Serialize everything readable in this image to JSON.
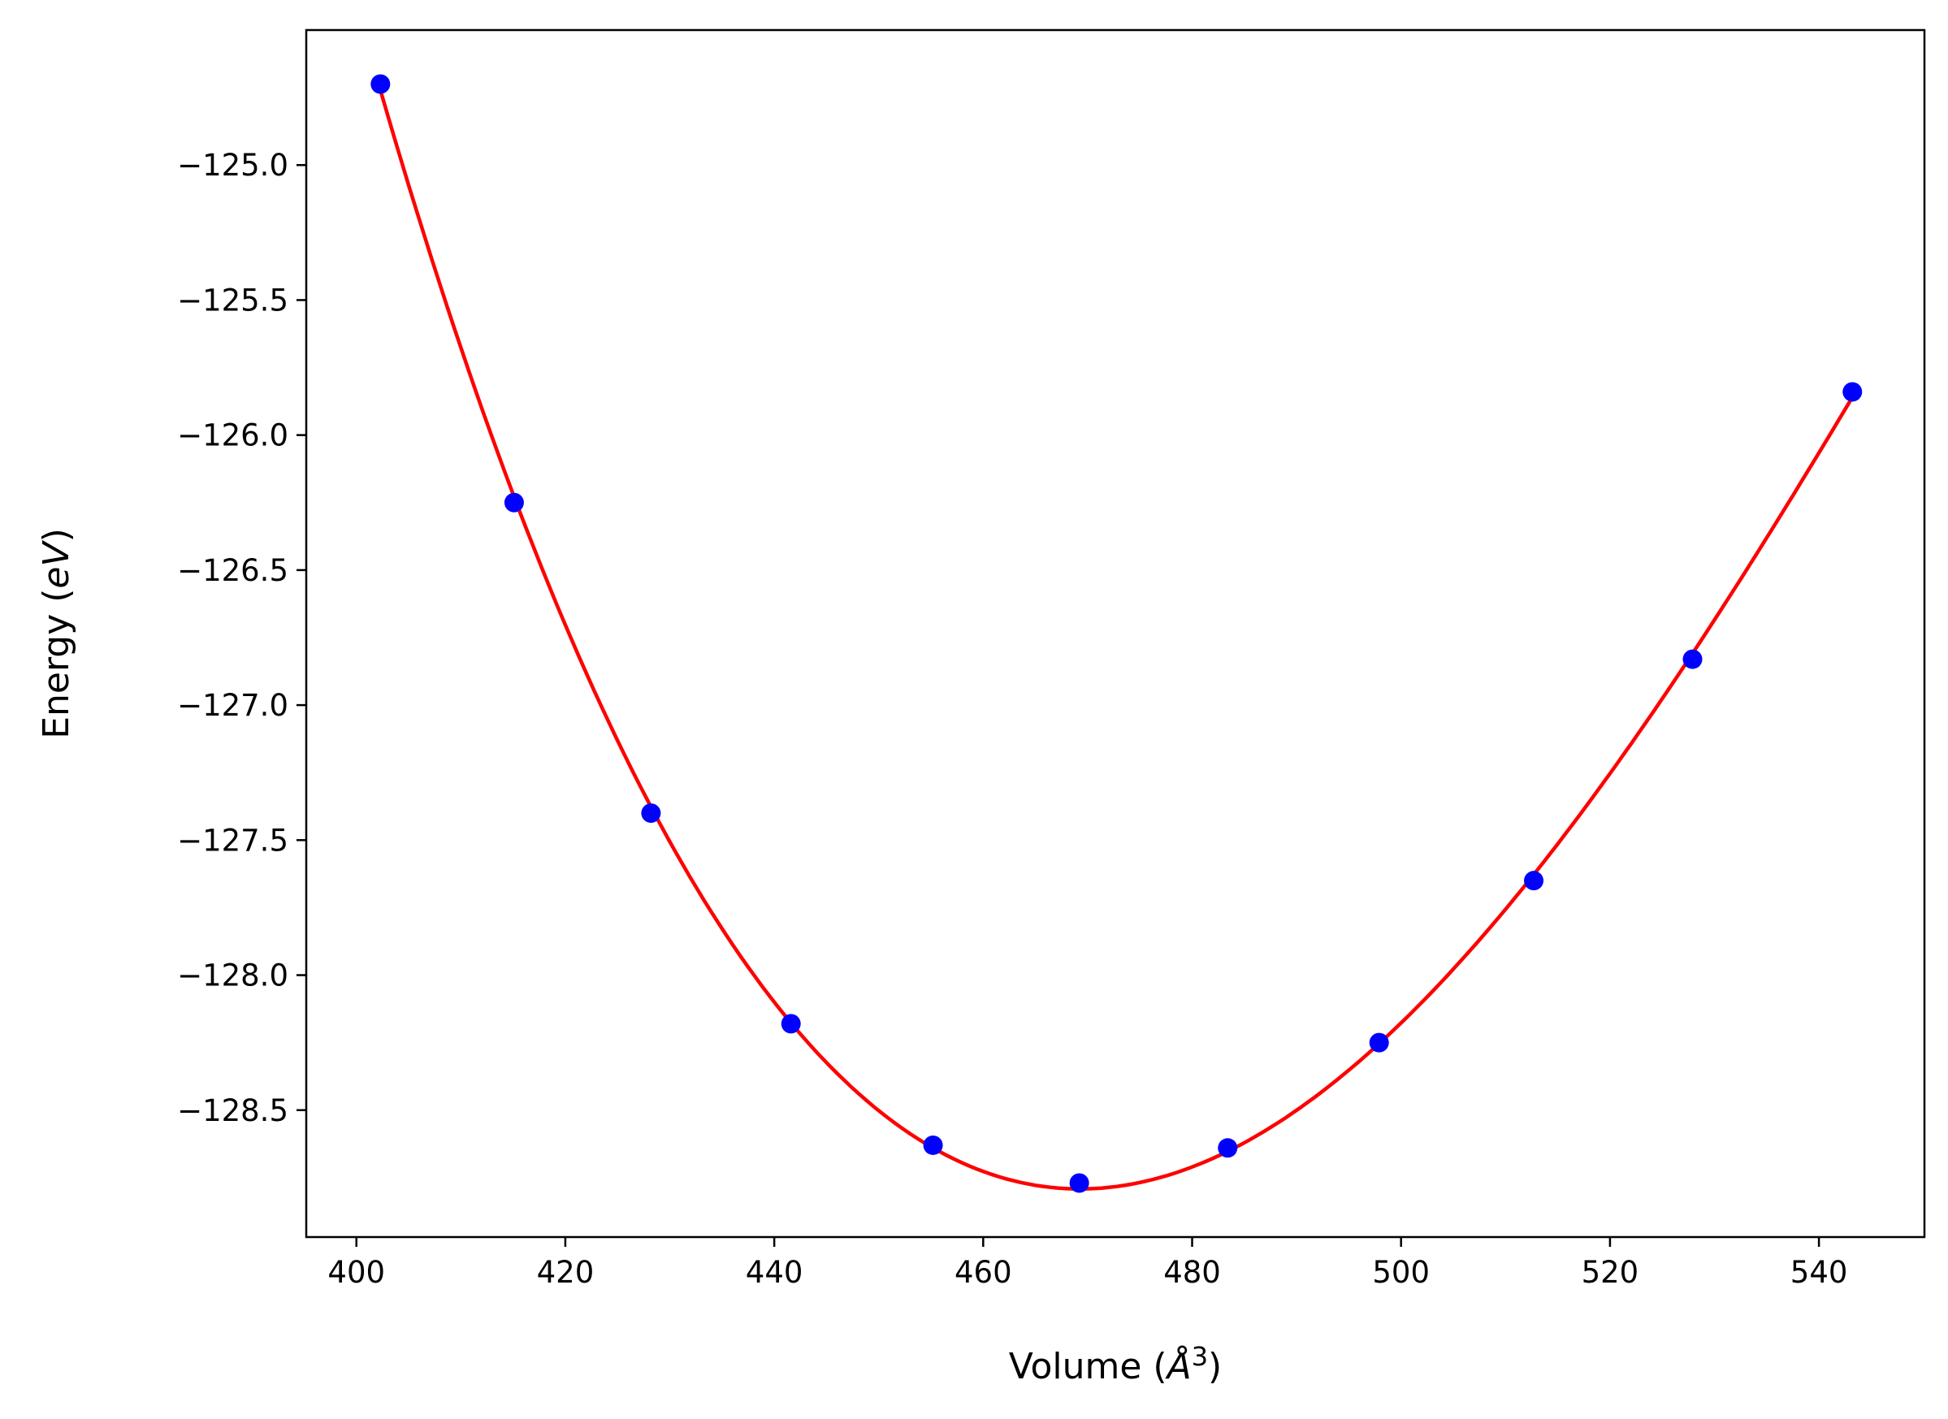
{
  "chart_data": {
    "type": "scatter",
    "title": "",
    "xlabel": "Volume (Å³)",
    "xlabel_parts": {
      "pre": "Volume (",
      "unit": "Å",
      "sup": "3",
      "post": ")"
    },
    "ylabel": "Energy (eV)",
    "ylabel_parts": {
      "pre": "Energy (",
      "unit": "eV",
      "post": ")"
    },
    "xlim": [
      395.2,
      550.1
    ],
    "ylim": [
      -128.97,
      -124.5
    ],
    "xticks": [
      400,
      420,
      440,
      460,
      480,
      500,
      520,
      540
    ],
    "xtick_labels": [
      "400",
      "420",
      "440",
      "460",
      "480",
      "500",
      "520",
      "540"
    ],
    "yticks": [
      -125.0,
      -125.5,
      -126.0,
      -126.5,
      -127.0,
      -127.5,
      -128.0,
      -128.5
    ],
    "ytick_labels": [
      "−125.0",
      "−125.5",
      "−126.0",
      "−126.5",
      "−127.0",
      "−127.5",
      "−128.0",
      "−128.5"
    ],
    "grid": false,
    "series": [
      {
        "kind": "points",
        "color": "#0000ff",
        "x": [
          402.3,
          415.1,
          428.2,
          441.6,
          455.2,
          469.2,
          483.4,
          497.9,
          512.7,
          527.9,
          543.2
        ],
        "y": [
          -124.7,
          -126.25,
          -127.4,
          -128.18,
          -128.63,
          -128.77,
          -128.64,
          -128.25,
          -127.65,
          -126.83,
          -125.84
        ]
      },
      {
        "kind": "fit-line",
        "color": "#ff0000"
      }
    ]
  }
}
